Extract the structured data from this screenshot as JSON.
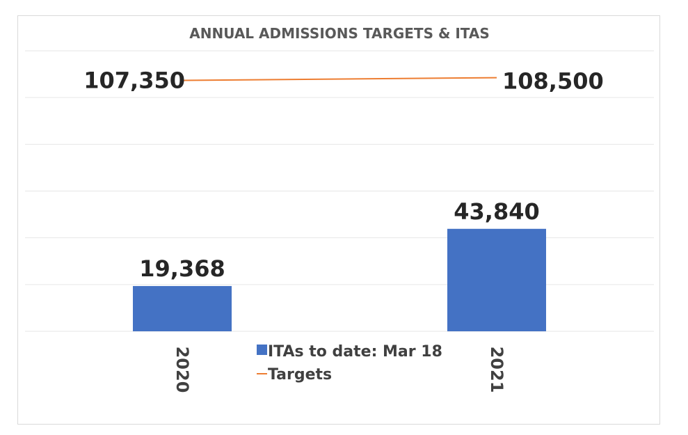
{
  "chart_data": {
    "type": "bar",
    "title": "ANNUAL ADMISSIONS TARGETS & ITAS",
    "categories": [
      "2020",
      "2021"
    ],
    "series": [
      {
        "name": "ITAs to date: Mar 18",
        "type": "bar",
        "color": "#4472c4",
        "values": [
          19368,
          43840
        ],
        "labels": [
          "19,368",
          "43,840"
        ]
      },
      {
        "name": "Targets",
        "type": "line",
        "color": "#ed7d31",
        "values": [
          107350,
          108500
        ],
        "labels": [
          "107,350",
          "108,500"
        ]
      }
    ],
    "ylim": [
      0,
      120000
    ],
    "ytick_step": 20000,
    "grid": true,
    "legend": "bottom-center",
    "xlabel": "",
    "ylabel": ""
  }
}
